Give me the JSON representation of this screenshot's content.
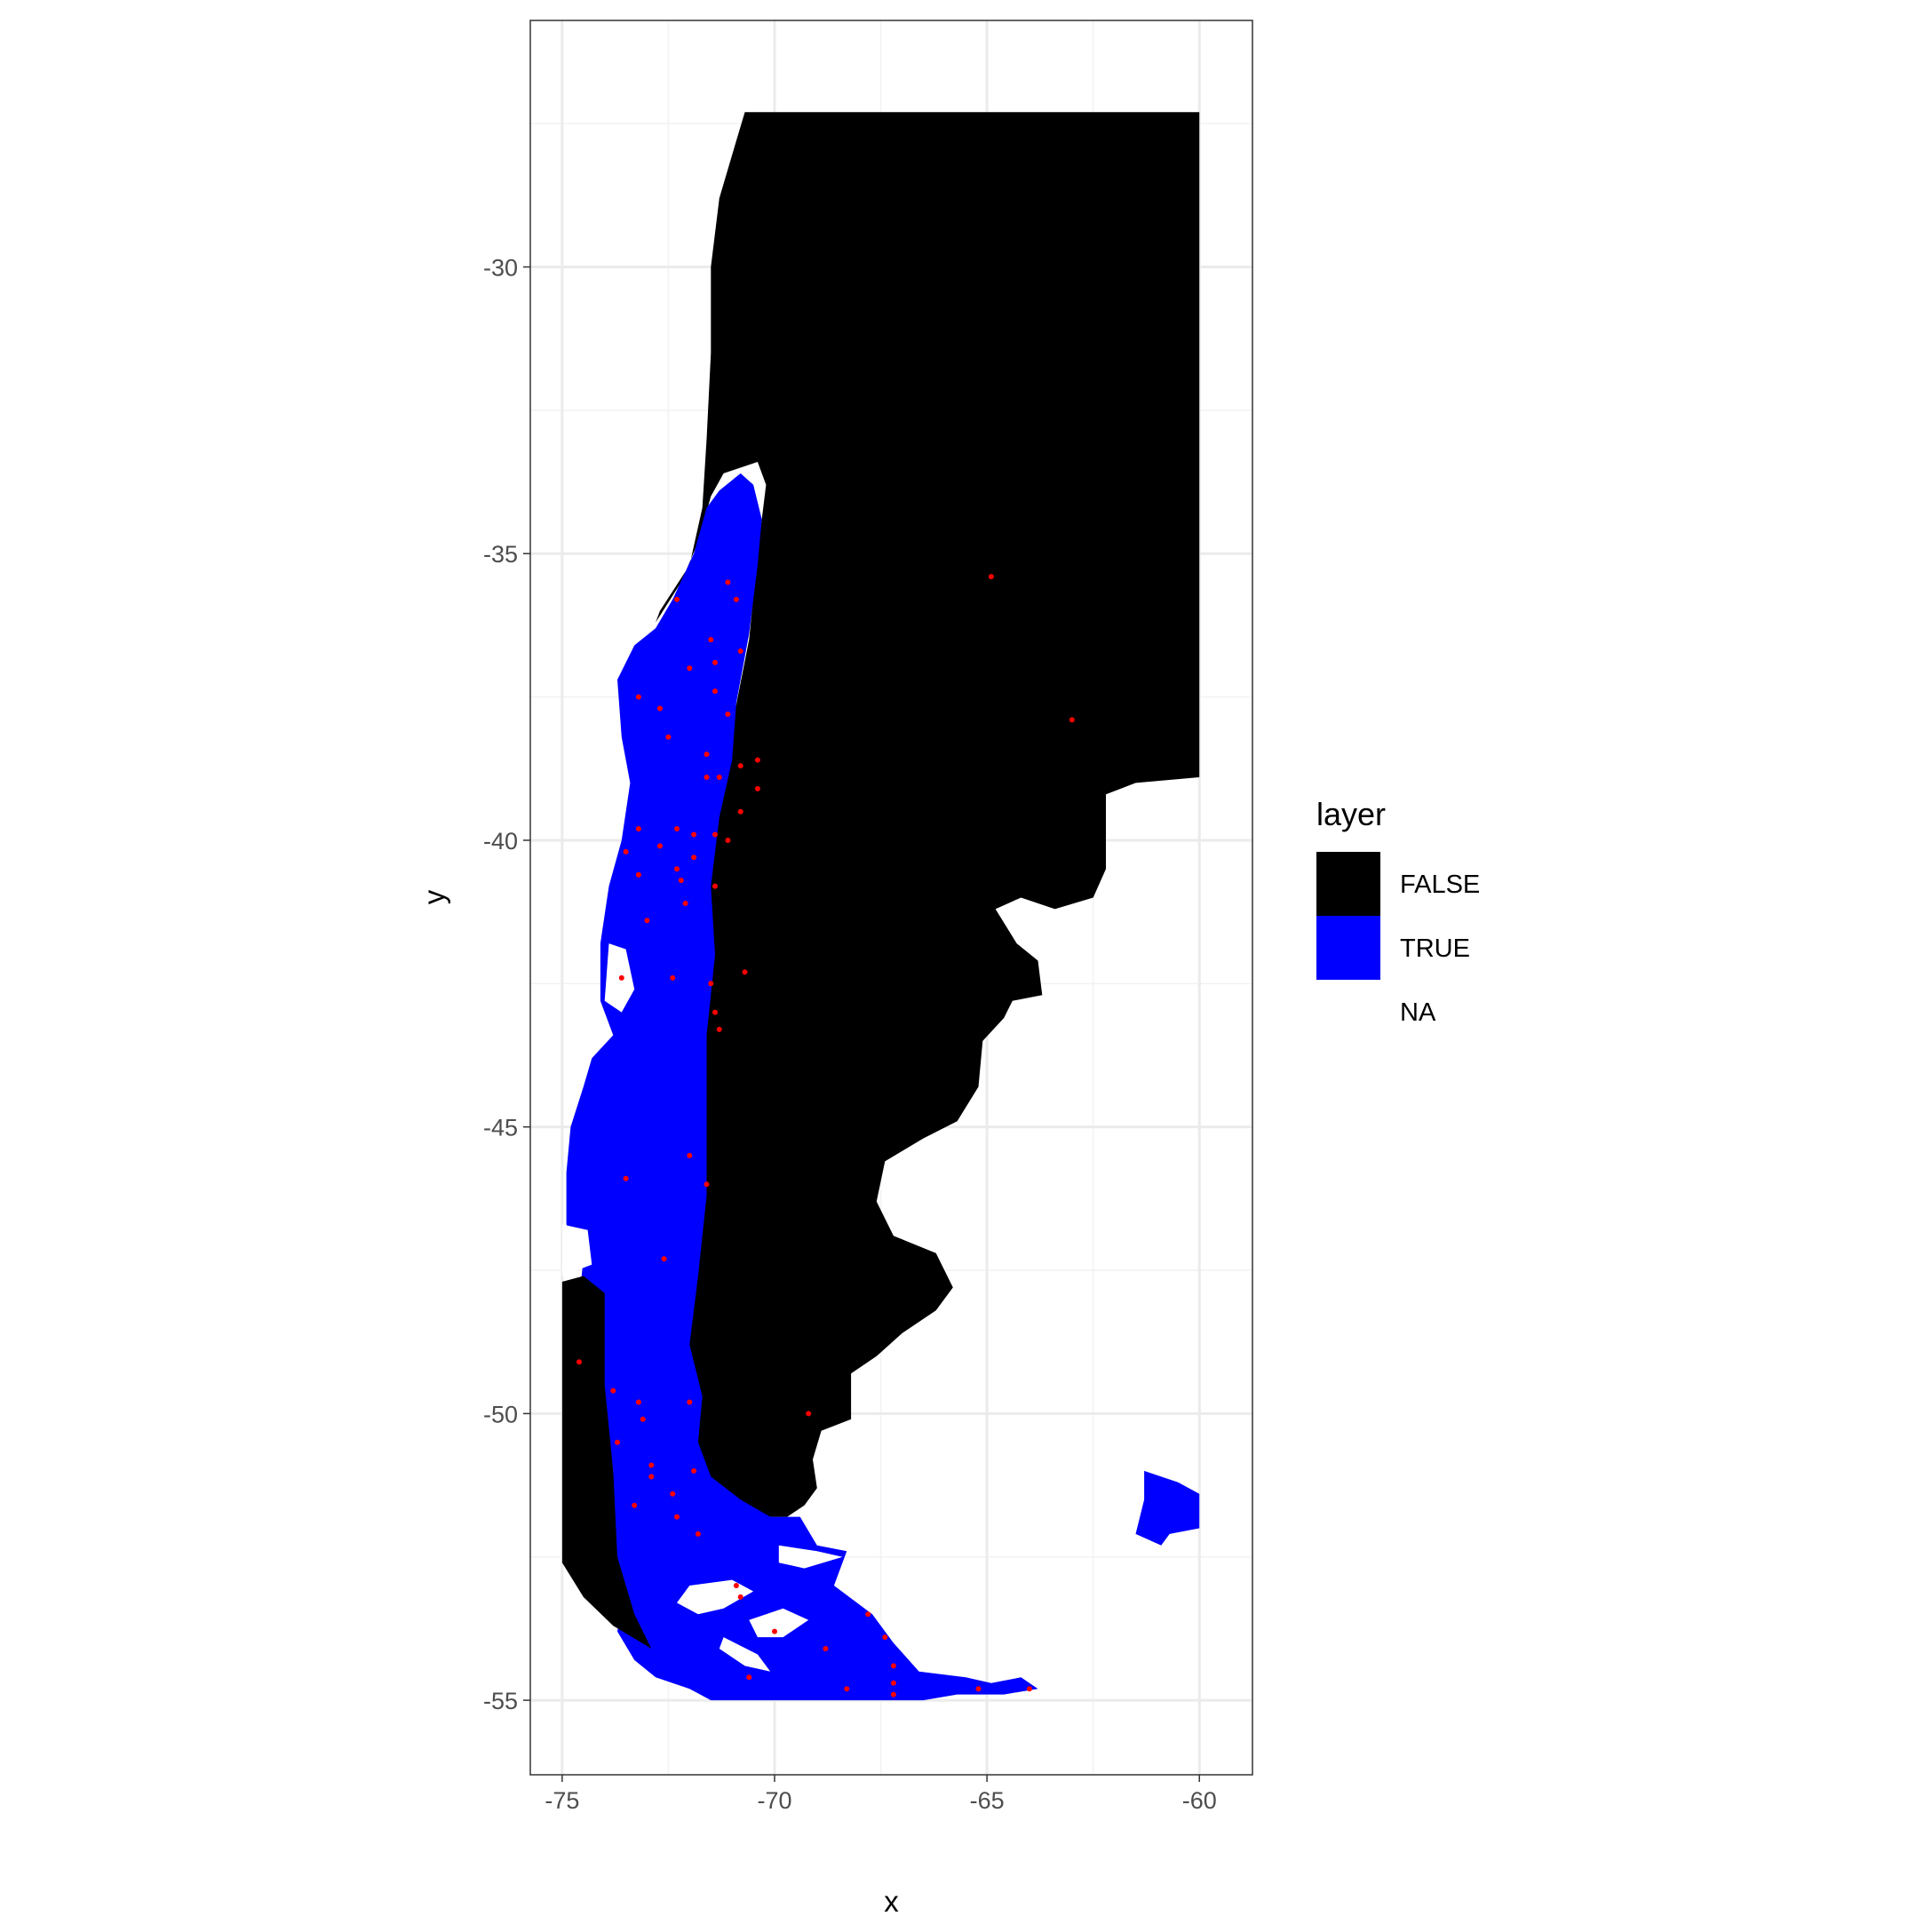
{
  "chart_data": {
    "type": "raster-map",
    "xlabel": "x",
    "ylabel": "y",
    "xlim": [
      -75.75,
      -58.75
    ],
    "ylim": [
      -56.3,
      -25.7
    ],
    "x_ticks": [
      -75,
      -70,
      -65,
      -60
    ],
    "x_tick_labels": [
      "-75",
      "-70",
      "-65",
      "-60"
    ],
    "y_ticks": [
      -55,
      -50,
      -45,
      -40,
      -35,
      -30
    ],
    "y_tick_labels": [
      "-55",
      "-50",
      "-45",
      "-40",
      "-35",
      "-30"
    ],
    "grid": true,
    "legend": {
      "title": "layer",
      "position": "right",
      "items": [
        {
          "label": "FALSE",
          "color": "#000000"
        },
        {
          "label": "TRUE",
          "color": "#0000ff"
        },
        {
          "label": "NA",
          "color": "#ffffff"
        }
      ]
    },
    "regions": [
      {
        "name": "FALSE",
        "color": "#000000",
        "polygon": [
          [
            -70.7,
            -27.3
          ],
          [
            -60.0,
            -27.3
          ],
          [
            -60.0,
            -38.9
          ],
          [
            -61.5,
            -39.0
          ],
          [
            -62.2,
            -39.2
          ],
          [
            -62.2,
            -40.5
          ],
          [
            -62.5,
            -41.0
          ],
          [
            -63.4,
            -41.2
          ],
          [
            -64.2,
            -41.0
          ],
          [
            -64.8,
            -41.2
          ],
          [
            -64.3,
            -41.8
          ],
          [
            -63.8,
            -42.1
          ],
          [
            -63.7,
            -42.7
          ],
          [
            -64.4,
            -42.8
          ],
          [
            -64.6,
            -43.1
          ],
          [
            -65.1,
            -43.5
          ],
          [
            -65.2,
            -44.3
          ],
          [
            -65.7,
            -44.9
          ],
          [
            -66.5,
            -45.2
          ],
          [
            -67.4,
            -45.6
          ],
          [
            -67.6,
            -46.3
          ],
          [
            -67.2,
            -46.9
          ],
          [
            -66.2,
            -47.2
          ],
          [
            -65.8,
            -47.8
          ],
          [
            -66.2,
            -48.2
          ],
          [
            -67.0,
            -48.6
          ],
          [
            -67.6,
            -49.0
          ],
          [
            -68.2,
            -49.3
          ],
          [
            -68.2,
            -50.1
          ],
          [
            -68.9,
            -50.3
          ],
          [
            -69.1,
            -50.8
          ],
          [
            -69.0,
            -51.3
          ],
          [
            -69.3,
            -51.6
          ],
          [
            -69.7,
            -51.8
          ],
          [
            -70.3,
            -51.8
          ],
          [
            -71.0,
            -51.5
          ],
          [
            -71.7,
            -51.1
          ],
          [
            -72.0,
            -50.5
          ],
          [
            -71.9,
            -49.6
          ],
          [
            -72.2,
            -48.8
          ],
          [
            -72.0,
            -47.5
          ],
          [
            -71.8,
            -46.2
          ],
          [
            -71.8,
            -44.8
          ],
          [
            -71.8,
            -43.5
          ],
          [
            -71.5,
            -42.0
          ],
          [
            -71.6,
            -40.5
          ],
          [
            -71.3,
            -39.5
          ],
          [
            -71.0,
            -38.0
          ],
          [
            -70.6,
            -36.5
          ],
          [
            -70.4,
            -35.0
          ],
          [
            -70.2,
            -33.8
          ],
          [
            -70.4,
            -33.4
          ],
          [
            -71.2,
            -33.6
          ],
          [
            -71.5,
            -34.0
          ],
          [
            -71.8,
            -34.8
          ],
          [
            -72.2,
            -35.5
          ],
          [
            -72.8,
            -36.2
          ],
          [
            -72.7,
            -36.0
          ],
          [
            -72.0,
            -35.2
          ],
          [
            -71.7,
            -34.2
          ],
          [
            -71.6,
            -33.0
          ],
          [
            -71.5,
            -31.5
          ],
          [
            -71.5,
            -30.0
          ],
          [
            -71.3,
            -28.8
          ],
          [
            -70.9,
            -27.8
          ]
        ]
      },
      {
        "name": "TRUE",
        "color": "#0000ff",
        "polygon": [
          [
            -70.5,
            -33.8
          ],
          [
            -70.3,
            -34.4
          ],
          [
            -70.4,
            -35.2
          ],
          [
            -70.6,
            -36.4
          ],
          [
            -70.9,
            -37.6
          ],
          [
            -71.0,
            -38.6
          ],
          [
            -71.3,
            -39.6
          ],
          [
            -71.5,
            -40.8
          ],
          [
            -71.4,
            -42.0
          ],
          [
            -71.6,
            -43.4
          ],
          [
            -71.6,
            -44.8
          ],
          [
            -71.6,
            -46.2
          ],
          [
            -71.8,
            -47.6
          ],
          [
            -72.0,
            -48.8
          ],
          [
            -71.7,
            -49.7
          ],
          [
            -71.8,
            -50.5
          ],
          [
            -71.5,
            -51.1
          ],
          [
            -70.8,
            -51.5
          ],
          [
            -70.1,
            -51.8
          ],
          [
            -69.4,
            -51.8
          ],
          [
            -69.0,
            -52.3
          ],
          [
            -68.3,
            -52.4
          ],
          [
            -68.6,
            -53.0
          ],
          [
            -67.7,
            -53.5
          ],
          [
            -67.2,
            -54.0
          ],
          [
            -66.6,
            -54.5
          ],
          [
            -65.5,
            -54.6
          ],
          [
            -64.9,
            -54.7
          ],
          [
            -64.2,
            -54.6
          ],
          [
            -63.8,
            -54.8
          ],
          [
            -64.6,
            -54.9
          ],
          [
            -65.7,
            -54.9
          ],
          [
            -66.5,
            -55.0
          ],
          [
            -68.0,
            -55.0
          ],
          [
            -70.0,
            -55.0
          ],
          [
            -71.5,
            -55.0
          ],
          [
            -72.0,
            -54.8
          ],
          [
            -72.8,
            -54.6
          ],
          [
            -73.3,
            -54.3
          ],
          [
            -73.7,
            -53.8
          ],
          [
            -73.5,
            -53.0
          ],
          [
            -73.9,
            -52.2
          ],
          [
            -73.8,
            -51.0
          ],
          [
            -74.0,
            -49.8
          ],
          [
            -74.3,
            -49.0
          ],
          [
            -74.6,
            -48.0
          ],
          [
            -74.5,
            -47.3
          ],
          [
            -74.9,
            -46.7
          ],
          [
            -74.9,
            -45.8
          ],
          [
            -74.8,
            -45.0
          ],
          [
            -74.5,
            -44.3
          ],
          [
            -74.3,
            -43.8
          ],
          [
            -73.8,
            -43.4
          ],
          [
            -74.1,
            -42.8
          ],
          [
            -74.1,
            -41.8
          ],
          [
            -73.9,
            -40.8
          ],
          [
            -73.6,
            -40.0
          ],
          [
            -73.4,
            -39.0
          ],
          [
            -73.6,
            -38.2
          ],
          [
            -73.7,
            -37.2
          ],
          [
            -73.3,
            -36.6
          ],
          [
            -72.8,
            -36.3
          ],
          [
            -72.4,
            -35.8
          ],
          [
            -71.9,
            -35.0
          ],
          [
            -71.6,
            -34.2
          ],
          [
            -71.3,
            -33.9
          ],
          [
            -70.8,
            -33.6
          ]
        ]
      },
      {
        "name": "TRUE",
        "color": "#0000ff",
        "polygon": [
          [
            -61.3,
            -51.0
          ],
          [
            -60.5,
            -51.2
          ],
          [
            -60.0,
            -51.4
          ],
          [
            -60.0,
            -52.0
          ],
          [
            -60.7,
            -52.1
          ],
          [
            -60.9,
            -52.3
          ],
          [
            -61.5,
            -52.1
          ],
          [
            -61.4,
            -51.8
          ],
          [
            -61.3,
            -51.5
          ]
        ]
      },
      {
        "name": "FALSE",
        "color": "#000000",
        "polygon": [
          [
            -75.0,
            -47.7
          ],
          [
            -74.5,
            -47.6
          ],
          [
            -74.0,
            -47.9
          ],
          [
            -74.0,
            -49.5
          ],
          [
            -73.8,
            -51.0
          ],
          [
            -73.7,
            -52.5
          ],
          [
            -73.3,
            -53.5
          ],
          [
            -72.9,
            -54.1
          ],
          [
            -73.8,
            -53.7
          ],
          [
            -74.5,
            -53.2
          ],
          [
            -75.0,
            -52.6
          ]
        ]
      },
      {
        "name": "NA",
        "color": "#ffffff",
        "polygon": [
          [
            -75.0,
            -46.7
          ],
          [
            -74.4,
            -46.8
          ],
          [
            -74.3,
            -47.4
          ],
          [
            -75.0,
            -47.6
          ]
        ]
      },
      {
        "name": "NA",
        "color": "#ffffff",
        "polygon": [
          [
            -73.9,
            -41.8
          ],
          [
            -73.5,
            -41.9
          ],
          [
            -73.3,
            -42.6
          ],
          [
            -73.6,
            -43.0
          ],
          [
            -74.0,
            -42.8
          ]
        ]
      },
      {
        "name": "NA",
        "color": "#ffffff",
        "polygon": [
          [
            -72.0,
            -53.0
          ],
          [
            -71.0,
            -52.9
          ],
          [
            -70.5,
            -53.1
          ],
          [
            -71.2,
            -53.4
          ],
          [
            -71.8,
            -53.5
          ],
          [
            -72.3,
            -53.3
          ]
        ]
      },
      {
        "name": "NA",
        "color": "#ffffff",
        "polygon": [
          [
            -70.6,
            -53.6
          ],
          [
            -69.8,
            -53.4
          ],
          [
            -69.2,
            -53.6
          ],
          [
            -69.8,
            -53.9
          ],
          [
            -70.4,
            -53.9
          ]
        ]
      },
      {
        "name": "NA",
        "color": "#ffffff",
        "polygon": [
          [
            -71.2,
            -53.9
          ],
          [
            -70.4,
            -54.2
          ],
          [
            -70.1,
            -54.5
          ],
          [
            -70.7,
            -54.4
          ],
          [
            -71.3,
            -54.1
          ]
        ]
      },
      {
        "name": "NA",
        "color": "#ffffff",
        "polygon": [
          [
            -69.9,
            -52.3
          ],
          [
            -69.0,
            -52.4
          ],
          [
            -68.4,
            -52.5
          ],
          [
            -69.3,
            -52.7
          ],
          [
            -69.9,
            -52.6
          ]
        ]
      }
    ],
    "points": {
      "color": "#ff0000",
      "xy": [
        [
          -64.9,
          -35.4
        ],
        [
          -63.0,
          -37.9
        ],
        [
          -69.2,
          -50.0
        ],
        [
          -72.3,
          -35.8
        ],
        [
          -71.1,
          -35.5
        ],
        [
          -70.9,
          -35.8
        ],
        [
          -71.5,
          -36.5
        ],
        [
          -71.4,
          -36.9
        ],
        [
          -70.8,
          -36.7
        ],
        [
          -72.0,
          -37.0
        ],
        [
          -73.2,
          -37.5
        ],
        [
          -71.4,
          -37.4
        ],
        [
          -72.7,
          -37.7
        ],
        [
          -71.1,
          -37.8
        ],
        [
          -72.5,
          -38.2
        ],
        [
          -71.6,
          -38.5
        ],
        [
          -70.4,
          -38.6
        ],
        [
          -71.6,
          -38.9
        ],
        [
          -71.3,
          -38.9
        ],
        [
          -70.8,
          -38.7
        ],
        [
          -70.4,
          -39.1
        ],
        [
          -70.8,
          -39.5
        ],
        [
          -73.2,
          -39.8
        ],
        [
          -72.3,
          -39.8
        ],
        [
          -71.9,
          -39.9
        ],
        [
          -71.4,
          -39.9
        ],
        [
          -71.1,
          -40.0
        ],
        [
          -72.7,
          -40.1
        ],
        [
          -73.5,
          -40.2
        ],
        [
          -71.9,
          -40.3
        ],
        [
          -72.3,
          -40.5
        ],
        [
          -73.2,
          -40.6
        ],
        [
          -72.2,
          -40.7
        ],
        [
          -71.4,
          -40.8
        ],
        [
          -72.1,
          -41.1
        ],
        [
          -73.0,
          -41.4
        ],
        [
          -70.7,
          -42.3
        ],
        [
          -73.6,
          -42.4
        ],
        [
          -72.4,
          -42.4
        ],
        [
          -71.5,
          -42.5
        ],
        [
          -71.4,
          -43.0
        ],
        [
          -71.3,
          -43.3
        ],
        [
          -73.5,
          -45.9
        ],
        [
          -72.0,
          -45.5
        ],
        [
          -71.6,
          -46.0
        ],
        [
          -72.6,
          -47.3
        ],
        [
          -74.6,
          -49.1
        ],
        [
          -73.8,
          -49.6
        ],
        [
          -73.2,
          -49.8
        ],
        [
          -72.0,
          -49.8
        ],
        [
          -73.1,
          -50.1
        ],
        [
          -73.7,
          -50.5
        ],
        [
          -72.9,
          -50.9
        ],
        [
          -71.9,
          -51.0
        ],
        [
          -72.9,
          -51.1
        ],
        [
          -72.4,
          -51.4
        ],
        [
          -73.3,
          -51.6
        ],
        [
          -72.3,
          -51.8
        ],
        [
          -71.8,
          -52.1
        ],
        [
          -70.9,
          -53.0
        ],
        [
          -70.8,
          -53.2
        ],
        [
          -67.8,
          -53.5
        ],
        [
          -70.0,
          -53.8
        ],
        [
          -67.4,
          -53.9
        ],
        [
          -68.8,
          -54.1
        ],
        [
          -67.2,
          -54.4
        ],
        [
          -70.6,
          -54.6
        ],
        [
          -67.2,
          -54.7
        ],
        [
          -68.3,
          -54.8
        ],
        [
          -65.2,
          -54.8
        ],
        [
          -64.0,
          -54.8
        ],
        [
          -67.2,
          -54.9
        ]
      ]
    }
  }
}
